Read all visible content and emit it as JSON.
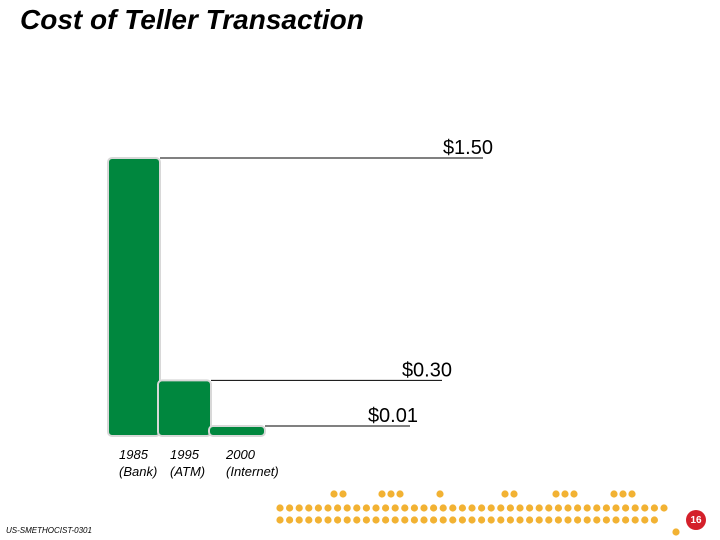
{
  "page": {
    "title": "Cost of Teller Transaction",
    "footer_code": "US-SMETHOCIST-0301",
    "page_number": "16"
  },
  "chart_data": {
    "type": "bar",
    "title": "Cost of Teller Transaction",
    "categories": [
      "1985 (Bank)",
      "1995 (ATM)",
      "2000 (Internet)"
    ],
    "category_lines": [
      [
        "1985",
        "(Bank)"
      ],
      [
        "1995",
        "(ATM)"
      ],
      [
        "2000",
        "(Internet)"
      ]
    ],
    "values": [
      1.5,
      0.3,
      0.01
    ],
    "value_labels": [
      "$1.50",
      "$0.30",
      "$0.01"
    ],
    "xlabel": "",
    "ylabel": "",
    "grid": false,
    "legend": "none"
  },
  "colors": {
    "bar": "#00873e",
    "bar_outline": "#d8d8d8",
    "leader_line": "#000000",
    "dots": "#f2b233",
    "page_badge": "#d4202a"
  }
}
